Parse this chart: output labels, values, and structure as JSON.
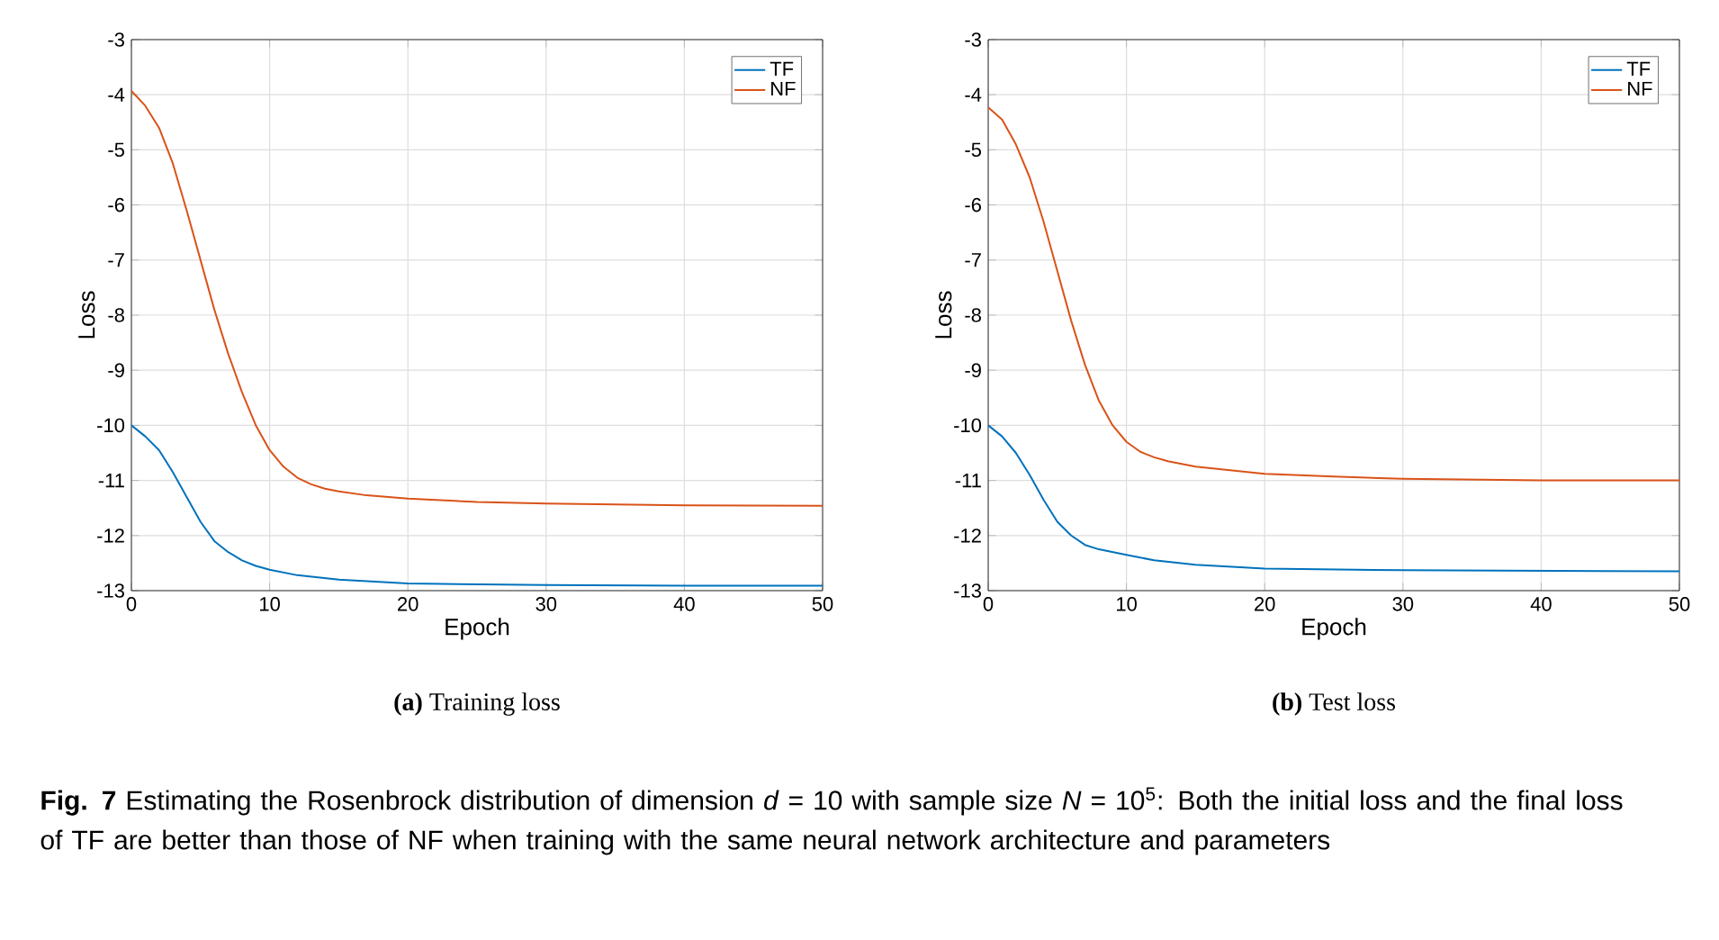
{
  "chart_data": [
    {
      "type": "line",
      "title": "**(a)** Training loss",
      "xlabel": "Epoch",
      "ylabel": "Loss",
      "xlim": [
        0,
        50
      ],
      "ylim": [
        -13,
        -3
      ],
      "xticks": [
        0,
        10,
        20,
        30,
        40,
        50
      ],
      "yticks": [
        -13,
        -12,
        -11,
        -10,
        -9,
        -8,
        -7,
        -6,
        -5,
        -4,
        -3
      ],
      "grid": true,
      "legend": "top right",
      "annotations": [
        "**Fig. 7** Estimating the Rosenbrock distribution of dimension *d* = 10 with sample size *N* = 10$^{5}$: Both the initial loss and the final loss of TF are better than those of NF when training with the same neural network architecture and parameters"
      ],
      "series": [
        {
          "name": "TF",
          "color": "#0072bd",
          "x": [
            0,
            1,
            2,
            3,
            4,
            5,
            6,
            7,
            8,
            9,
            10,
            12,
            15,
            20,
            30,
            40,
            50
          ],
          "values": [
            -10.0,
            -10.2,
            -10.45,
            -10.85,
            -11.3,
            -11.75,
            -12.1,
            -12.3,
            -12.45,
            -12.55,
            -12.62,
            -12.72,
            -12.8,
            -12.87,
            -12.9,
            -12.91,
            -12.91
          ]
        },
        {
          "name": "NF",
          "color": "#d95319",
          "x": [
            0,
            1,
            2,
            3,
            4,
            5,
            6,
            7,
            8,
            9,
            10,
            11,
            12,
            13,
            14,
            15,
            17,
            20,
            25,
            30,
            40,
            50
          ],
          "values": [
            -3.93,
            -4.2,
            -4.6,
            -5.25,
            -6.1,
            -7.0,
            -7.9,
            -8.7,
            -9.4,
            -10.0,
            -10.45,
            -10.75,
            -10.95,
            -11.07,
            -11.15,
            -11.2,
            -11.27,
            -11.33,
            -11.39,
            -11.42,
            -11.45,
            -11.46
          ]
        }
      ]
    },
    {
      "type": "line",
      "title": "**(b)** Test loss",
      "xlabel": "Epoch",
      "ylabel": "Loss",
      "xlim": [
        0,
        50
      ],
      "ylim": [
        -13,
        -3
      ],
      "xticks": [
        0,
        10,
        20,
        30,
        40,
        50
      ],
      "yticks": [
        -13,
        -12,
        -11,
        -10,
        -9,
        -8,
        -7,
        -6,
        -5,
        -4,
        -3
      ],
      "grid": true,
      "legend": "top right",
      "series": [
        {
          "name": "TF",
          "color": "#0072bd",
          "x": [
            0,
            1,
            2,
            3,
            4,
            5,
            6,
            7,
            8,
            10,
            12,
            15,
            20,
            30,
            40,
            50
          ],
          "values": [
            -10.0,
            -10.2,
            -10.5,
            -10.9,
            -11.35,
            -11.75,
            -12.0,
            -12.17,
            -12.25,
            -12.35,
            -12.45,
            -12.53,
            -12.6,
            -12.63,
            -12.64,
            -12.65
          ]
        },
        {
          "name": "NF",
          "color": "#d95319",
          "x": [
            0,
            1,
            2,
            3,
            4,
            5,
            6,
            7,
            8,
            9,
            10,
            11,
            12,
            13,
            15,
            20,
            25,
            30,
            40,
            50
          ],
          "values": [
            -4.23,
            -4.45,
            -4.9,
            -5.5,
            -6.3,
            -7.2,
            -8.1,
            -8.9,
            -9.55,
            -10.0,
            -10.3,
            -10.48,
            -10.58,
            -10.65,
            -10.75,
            -10.88,
            -10.93,
            -10.97,
            -11.0,
            -11.0
          ]
        }
      ]
    }
  ]
}
